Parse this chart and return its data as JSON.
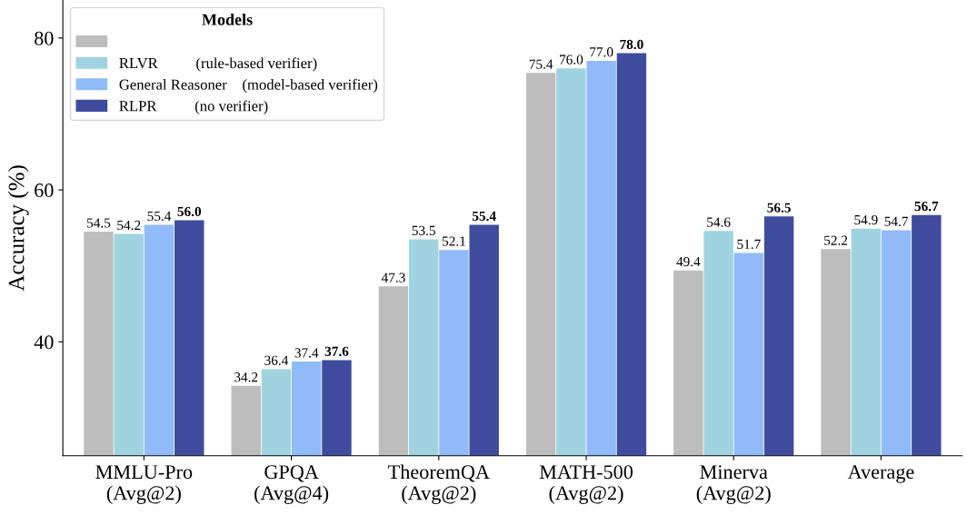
{
  "chart_data": {
    "type": "bar",
    "ylabel": "Accuracy (%)",
    "legend_title": "Models",
    "legend": "top left",
    "grid": false,
    "categories": [
      "MMLU-Pro\n(Avg@2)",
      "GPQA\n(Avg@4)",
      "TheoremQA\n(Avg@2)",
      "MATH-500\n(Avg@2)",
      "Minerva\n(Avg@2)",
      "Average"
    ],
    "ylim": [
      25,
      85
    ],
    "yticks": [
      40,
      60,
      80
    ],
    "series": [
      {
        "color": "#bdbdbd",
        "values": [
          54.5,
          34.2,
          47.3,
          75.4,
          49.4,
          52.2
        ],
        "value_labels": [
          "54.5",
          "34.2",
          "47.3",
          "75.4",
          "49.4",
          "52.2"
        ]
      },
      {
        "name": "RLVR          (rule-based verifier)",
        "color": "#a0d3e0",
        "values": [
          54.2,
          36.4,
          53.5,
          76.0,
          54.6,
          54.9
        ],
        "value_labels": [
          "54.2",
          "36.4",
          "53.5",
          "76.0",
          "54.6",
          "54.9"
        ]
      },
      {
        "name": "General Reasoner    (model-based verifier)",
        "color": "#90bbf8",
        "values": [
          55.4,
          37.4,
          52.1,
          77.0,
          51.7,
          54.7
        ],
        "value_labels": [
          "55.4",
          "37.4",
          "52.1",
          "77.0",
          "51.7",
          "54.7"
        ]
      },
      {
        "name": "RLPR          (no verifier)",
        "color": "#3f4c9e",
        "values": [
          56.0,
          37.6,
          55.4,
          78.0,
          56.5,
          56.7
        ],
        "value_labels": [
          "56.0",
          "37.6",
          "55.4",
          "78.0",
          "56.5",
          "56.7"
        ]
      }
    ]
  }
}
